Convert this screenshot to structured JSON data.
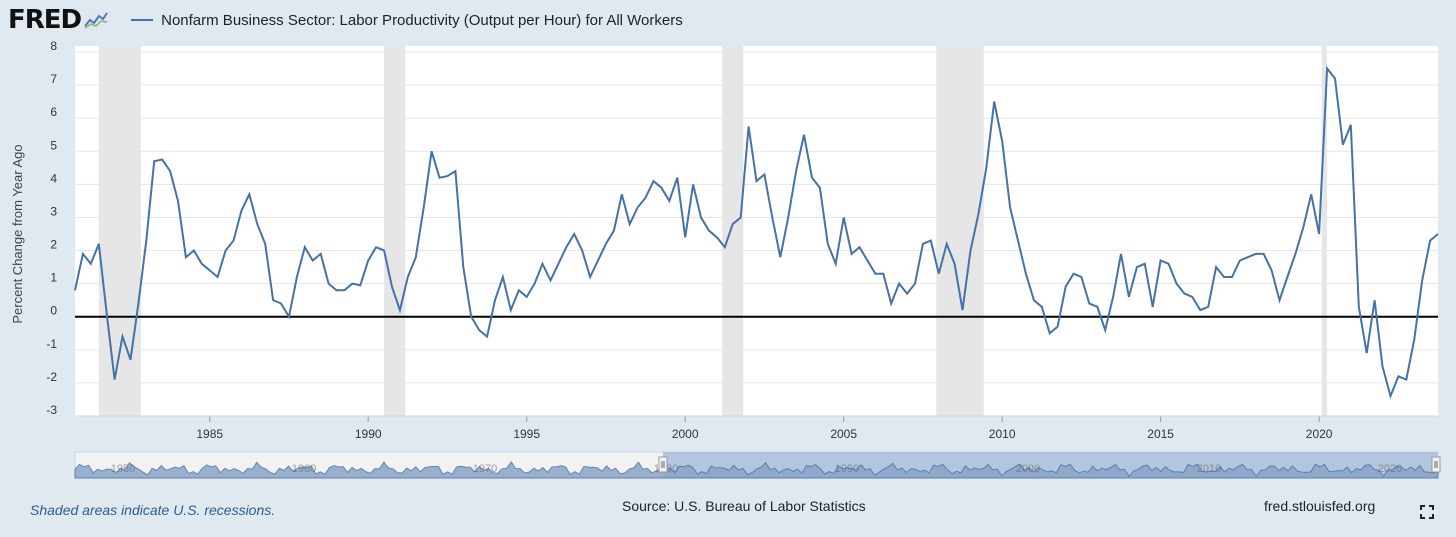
{
  "header": {
    "logo_text": "FRED",
    "logo_icon": "fred-chart-icon",
    "series_title": "Nonfarm Business Sector: Labor Productivity (Output per Hour) for All Workers"
  },
  "footer": {
    "recessions_note": "Shaded areas indicate U.S. recessions.",
    "source": "Source: U.S. Bureau of Labor Statistics",
    "site": "fred.stlouisfed.org",
    "fullscreen_icon": "fullscreen-icon"
  },
  "colors": {
    "line": "#4572a7",
    "recession": "#e6e6e6",
    "navigator_fill": "#8ba4c8",
    "background": "#e1e9f0"
  },
  "navigator": {
    "labels": [
      "1950",
      "1960",
      "1970",
      "1980",
      "1990",
      "2000",
      "2010",
      "2020"
    ]
  },
  "chart_data": {
    "type": "line",
    "title": "Nonfarm Business Sector: Labor Productivity (Output per Hour) for All Workers",
    "xlabel": "",
    "ylabel": "Percent Change from Year Ago",
    "xlim": [
      1980.75,
      2023.75
    ],
    "ylim": [
      -3,
      8
    ],
    "yticks": [
      -3,
      -2,
      -1,
      0,
      1,
      2,
      3,
      4,
      5,
      6,
      7,
      8
    ],
    "yticklabels": [
      "-3",
      "-2",
      "-1",
      "0",
      "1",
      "2",
      "3",
      "4",
      "5",
      "6",
      "7",
      "8"
    ],
    "xticks": [
      1985,
      1990,
      1995,
      2000,
      2005,
      2010,
      2015,
      2020
    ],
    "xticklabels": [
      "1985",
      "1990",
      "1995",
      "2000",
      "2005",
      "2010",
      "2015",
      "2020"
    ],
    "grid": true,
    "legend": "top-left",
    "recessions": [
      [
        1981.5,
        1982.83
      ],
      [
        1990.5,
        1991.17
      ],
      [
        2001.17,
        2001.83
      ],
      [
        2007.92,
        2009.42
      ],
      [
        2020.08,
        2020.25
      ]
    ],
    "series": [
      {
        "name": "Nonfarm Business Sector: Labor Productivity (Output per Hour) for All Workers",
        "x": [
          1980.75,
          1981.0,
          1981.25,
          1981.5,
          1981.75,
          1982.0,
          1982.25,
          1982.5,
          1982.75,
          1983.0,
          1983.25,
          1983.5,
          1983.75,
          1984.0,
          1984.25,
          1984.5,
          1984.75,
          1985.0,
          1985.25,
          1985.5,
          1985.75,
          1986.0,
          1986.25,
          1986.5,
          1986.75,
          1987.0,
          1987.25,
          1987.5,
          1987.75,
          1988.0,
          1988.25,
          1988.5,
          1988.75,
          1989.0,
          1989.25,
          1989.5,
          1989.75,
          1990.0,
          1990.25,
          1990.5,
          1990.75,
          1991.0,
          1991.25,
          1991.5,
          1991.75,
          1992.0,
          1992.25,
          1992.5,
          1992.75,
          1993.0,
          1993.25,
          1993.5,
          1993.75,
          1994.0,
          1994.25,
          1994.5,
          1994.75,
          1995.0,
          1995.25,
          1995.5,
          1995.75,
          1996.0,
          1996.25,
          1996.5,
          1996.75,
          1997.0,
          1997.25,
          1997.5,
          1997.75,
          1998.0,
          1998.25,
          1998.5,
          1998.75,
          1999.0,
          1999.25,
          1999.5,
          1999.75,
          2000.0,
          2000.25,
          2000.5,
          2000.75,
          2001.0,
          2001.25,
          2001.5,
          2001.75,
          2002.0,
          2002.25,
          2002.5,
          2002.75,
          2003.0,
          2003.25,
          2003.5,
          2003.75,
          2004.0,
          2004.25,
          2004.5,
          2004.75,
          2005.0,
          2005.25,
          2005.5,
          2005.75,
          2006.0,
          2006.25,
          2006.5,
          2006.75,
          2007.0,
          2007.25,
          2007.5,
          2007.75,
          2008.0,
          2008.25,
          2008.5,
          2008.75,
          2009.0,
          2009.25,
          2009.5,
          2009.75,
          2010.0,
          2010.25,
          2010.5,
          2010.75,
          2011.0,
          2011.25,
          2011.5,
          2011.75,
          2012.0,
          2012.25,
          2012.5,
          2012.75,
          2013.0,
          2013.25,
          2013.5,
          2013.75,
          2014.0,
          2014.25,
          2014.5,
          2014.75,
          2015.0,
          2015.25,
          2015.5,
          2015.75,
          2016.0,
          2016.25,
          2016.5,
          2016.75,
          2017.0,
          2017.25,
          2017.5,
          2017.75,
          2018.0,
          2018.25,
          2018.5,
          2018.75,
          2019.0,
          2019.25,
          2019.5,
          2019.75,
          2020.0,
          2020.25,
          2020.5,
          2020.75,
          2021.0,
          2021.25,
          2021.5,
          2021.75,
          2022.0,
          2022.25,
          2022.5,
          2022.75,
          2023.0,
          2023.25,
          2023.5,
          2023.75
        ],
        "values": [
          0.8,
          1.9,
          1.6,
          2.2,
          0.1,
          -1.9,
          -0.6,
          -1.3,
          0.4,
          2.3,
          4.7,
          4.75,
          4.4,
          3.5,
          1.8,
          2.0,
          1.6,
          1.4,
          1.2,
          2.0,
          2.3,
          3.2,
          3.7,
          2.8,
          2.2,
          0.5,
          0.4,
          0.0,
          1.2,
          2.1,
          1.7,
          1.9,
          1.0,
          0.8,
          0.8,
          1.0,
          0.95,
          1.7,
          2.1,
          2.0,
          0.9,
          0.2,
          1.2,
          1.8,
          3.3,
          5.0,
          4.2,
          4.25,
          4.4,
          1.5,
          0.0,
          -0.4,
          -0.6,
          0.5,
          1.2,
          0.2,
          0.8,
          0.6,
          1.0,
          1.6,
          1.1,
          1.6,
          2.1,
          2.5,
          2.0,
          1.2,
          1.7,
          2.2,
          2.6,
          3.7,
          2.8,
          3.3,
          3.6,
          4.1,
          3.9,
          3.5,
          4.2,
          2.4,
          4.0,
          3.0,
          2.6,
          2.4,
          2.1,
          2.8,
          3.0,
          5.75,
          4.1,
          4.3,
          3.0,
          1.8,
          3.0,
          4.4,
          5.5,
          4.2,
          3.9,
          2.2,
          1.6,
          3.0,
          1.9,
          2.1,
          1.7,
          1.3,
          1.3,
          0.4,
          1.0,
          0.7,
          1.0,
          2.2,
          2.3,
          1.3,
          2.2,
          1.6,
          0.2,
          2.0,
          3.1,
          4.5,
          6.5,
          5.3,
          3.3,
          2.3,
          1.3,
          0.5,
          0.3,
          -0.5,
          -0.3,
          0.9,
          1.3,
          1.2,
          0.4,
          0.3,
          -0.4,
          0.6,
          1.9,
          0.6,
          1.5,
          1.6,
          0.3,
          1.7,
          1.6,
          1.0,
          0.7,
          0.6,
          0.2,
          0.3,
          1.5,
          1.2,
          1.2,
          1.7,
          1.8,
          1.9,
          1.9,
          1.4,
          0.5,
          1.2,
          1.9,
          2.7,
          3.7,
          2.5,
          7.5,
          7.2,
          5.2,
          5.8,
          0.3,
          -1.1,
          0.5,
          -1.5,
          -2.4,
          -1.8,
          -1.9,
          -0.7,
          1.1,
          2.3,
          2.5
        ]
      }
    ]
  }
}
